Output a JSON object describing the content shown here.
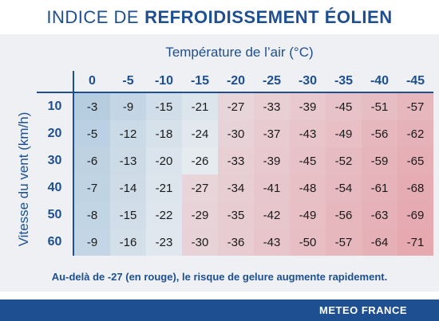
{
  "title": {
    "light": "INDICE DE",
    "bold": "REFROIDISSEMENT ÉOLIEN"
  },
  "x_axis_label": "Température de l’air (°C)",
  "y_axis_label": "Vitesse du vent (km/h)",
  "temperatures": [
    "0",
    "-5",
    "-10",
    "-15",
    "-20",
    "-25",
    "-30",
    "-35",
    "-40",
    "-45"
  ],
  "wind_speeds": [
    "10",
    "20",
    "30",
    "40",
    "50",
    "60"
  ],
  "values": [
    [
      "-3",
      "-9",
      "-15",
      "-21",
      "-27",
      "-33",
      "-39",
      "-45",
      "-51",
      "-57"
    ],
    [
      "-5",
      "-12",
      "-18",
      "-24",
      "-30",
      "-37",
      "-43",
      "-49",
      "-56",
      "-62"
    ],
    [
      "-6",
      "-13",
      "-20",
      "-26",
      "-33",
      "-39",
      "-45",
      "-52",
      "-59",
      "-65"
    ],
    [
      "-7",
      "-14",
      "-21",
      "-27",
      "-34",
      "-41",
      "-48",
      "-54",
      "-61",
      "-68"
    ],
    [
      "-8",
      "-15",
      "-22",
      "-29",
      "-35",
      "-42",
      "-49",
      "-56",
      "-63",
      "-69"
    ],
    [
      "-9",
      "-16",
      "-23",
      "-30",
      "-36",
      "-43",
      "-50",
      "-57",
      "-64",
      "-71"
    ]
  ],
  "note": "Au-delà de -27 (en rouge), le risque de gelure augmente rapidement.",
  "footer_brand": "METEO FRANCE",
  "colors": {
    "brand_blue": "#1d4f91",
    "cold_blue": "#b6cde0",
    "neutral": "#e8ecf0",
    "danger_red": "#e6a9b0"
  }
}
